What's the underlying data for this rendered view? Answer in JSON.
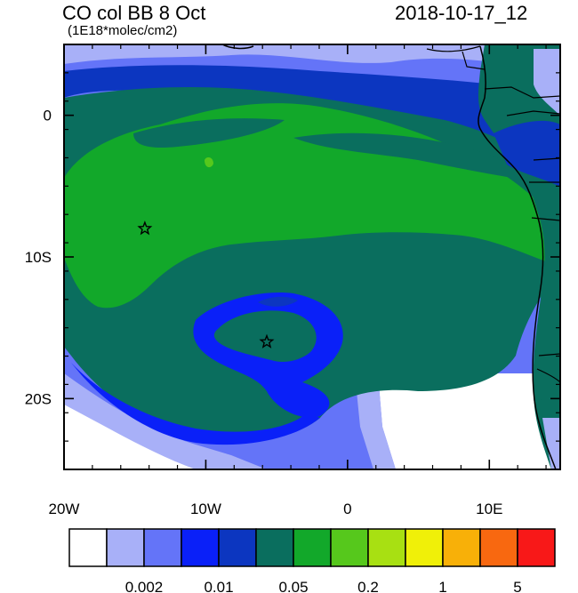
{
  "title": "CO col BB 8 Oct",
  "subtitle": "(1E18*molec/cm2)",
  "datestamp": "2018-10-17_12",
  "map": {
    "lon_range": [
      -20,
      15
    ],
    "lat_range": [
      -25,
      5
    ],
    "x_ticks": [
      {
        "value": -20,
        "label": "20W"
      },
      {
        "value": -10,
        "label": "10W"
      },
      {
        "value": 0,
        "label": "0"
      },
      {
        "value": 10,
        "label": "10E"
      }
    ],
    "y_ticks": [
      {
        "value": 0,
        "label": "0"
      },
      {
        "value": -10,
        "label": "10S"
      },
      {
        "value": -20,
        "label": "20S"
      }
    ],
    "markers": [
      {
        "name": "star",
        "lon": -14.3,
        "lat": -8.0
      },
      {
        "name": "star",
        "lon": -5.7,
        "lat": -16.0
      }
    ]
  },
  "colorbar": {
    "colors": [
      "#ffffff",
      "#a8b0f8",
      "#6474f8",
      "#0a20f8",
      "#0c36c0",
      "#0a6e5e",
      "#12a82a",
      "#56c81c",
      "#a8e012",
      "#f0f008",
      "#f8b008",
      "#f86810",
      "#f81818"
    ],
    "labels": [
      {
        "after_box": 2,
        "text": "0.002"
      },
      {
        "after_box": 4,
        "text": "0.01"
      },
      {
        "after_box": 6,
        "text": "0.05"
      },
      {
        "after_box": 8,
        "text": "0.2"
      },
      {
        "after_box": 10,
        "text": "1"
      },
      {
        "after_box": 12,
        "text": "5"
      }
    ]
  }
}
